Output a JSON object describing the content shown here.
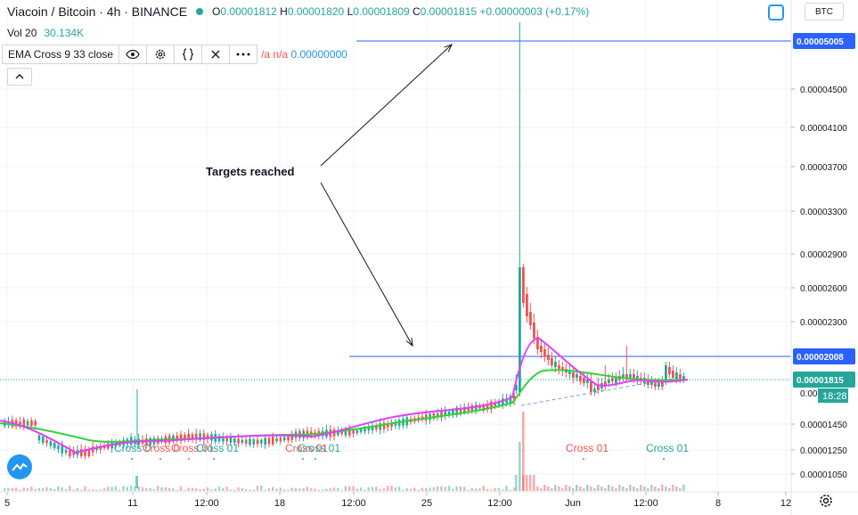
{
  "header": {
    "symbol": "Viacoin / Bitcoin · 4h · BINANCE",
    "open_label": "O",
    "open": "0.00001812",
    "high_label": "H",
    "high": "0.00001820",
    "low_label": "L",
    "low": "0.00001809",
    "close_label": "C",
    "close": "0.00001815",
    "change": "+0.00000003 (+0.17%)"
  },
  "volume": {
    "label": "Vol 20",
    "value": "30.134K"
  },
  "indicator": {
    "label": "EMA Cross 9 33 close",
    "values_na": "/a  n/a",
    "value": "0.00000000"
  },
  "currency": "BTC",
  "annotation": {
    "text": "Targets reached"
  },
  "price_tags": {
    "upper_target": "0.00005005",
    "lower_target": "0.00002008",
    "last_price": "0.00001815",
    "countdown": "18:28"
  },
  "colors": {
    "up": "#26a69a",
    "down": "#ef5350",
    "ema_fast": "#e040fb",
    "ema_slow": "#33d13a",
    "target": "#2962ff",
    "last": "#26a69a"
  },
  "chart_data": {
    "type": "candlestick",
    "y_ticks": [
      "0.00004500",
      "0.00004100",
      "0.00003700",
      "0.00003300",
      "0.00002900",
      "0.00002600",
      "0.00002300",
      "0.00001450",
      "0.00001250",
      "0.00001050"
    ],
    "x_ticks": [
      "5",
      "11",
      "12:00",
      "18",
      "12:00",
      "25",
      "12:00",
      "Jun",
      "12:00",
      "8",
      "12"
    ],
    "series_markers": [
      {
        "label": "Cross 0",
        "color": "#26a69a"
      },
      {
        "label": "Cross 0",
        "color": "#ef5350"
      },
      {
        "label": "Cross 01",
        "color": "#ef5350"
      },
      {
        "label": "Cross 01",
        "color": "#26a69a"
      },
      {
        "label": "Cross 01",
        "color": "#ef5350"
      },
      {
        "label": "Cross 01",
        "color": "#26a69a"
      },
      {
        "label": "Cross 01",
        "color": "#ef5350"
      },
      {
        "label": "Cross 01",
        "color": "#26a69a"
      }
    ],
    "target_levels": [
      5.005e-05,
      2.008e-05
    ],
    "last_price": 1.815e-05
  }
}
